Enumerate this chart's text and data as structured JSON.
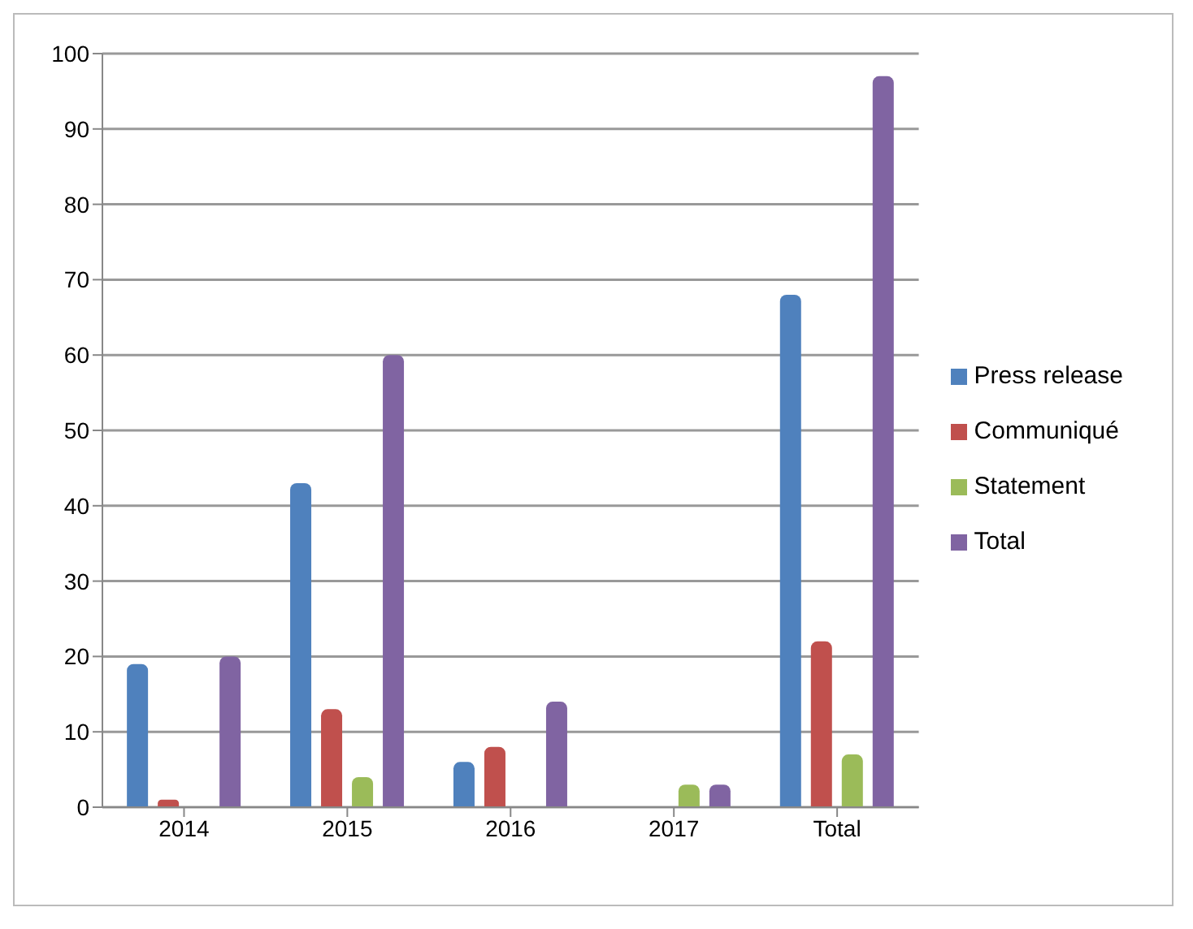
{
  "chart_data": {
    "type": "bar",
    "categories": [
      "2014",
      "2015",
      "2016",
      "2017",
      "Total"
    ],
    "series": [
      {
        "name": "Press release",
        "color": "#4f81bd",
        "values": [
          19,
          43,
          6,
          0,
          68
        ]
      },
      {
        "name": "Communiqué",
        "color": "#c0504d",
        "values": [
          1,
          13,
          8,
          0,
          22
        ]
      },
      {
        "name": "Statement",
        "color": "#9bbb59",
        "values": [
          0,
          4,
          0,
          3,
          7
        ]
      },
      {
        "name": "Total",
        "color": "#8064a2",
        "values": [
          20,
          60,
          14,
          3,
          97
        ]
      }
    ],
    "ylim": [
      0,
      100
    ],
    "yticks": [
      0,
      10,
      20,
      30,
      40,
      50,
      60,
      70,
      80,
      90,
      100
    ],
    "grid": "y",
    "legend": "right"
  }
}
